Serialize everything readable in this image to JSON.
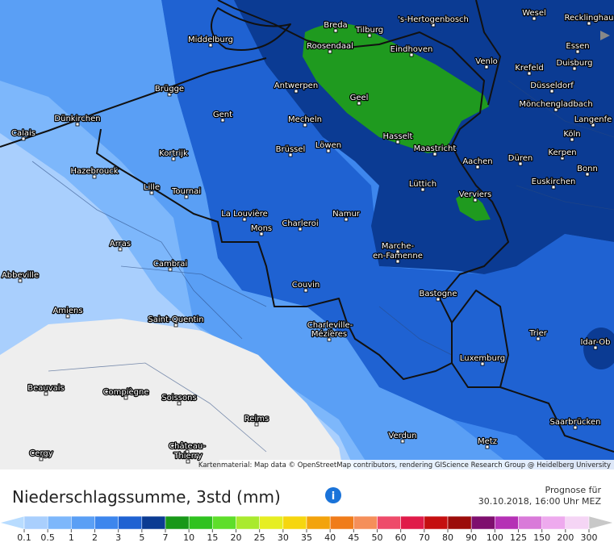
{
  "map": {
    "cities": [
      "Middelburg",
      "Breda",
      "Tilburg",
      "'s-Hertogenbosch",
      "Wesel",
      "Recklinghau",
      "Roosendaal",
      "Eindhoven",
      "Venlo",
      "Krefeld",
      "Essen",
      "Duisburg",
      "Brügge",
      "Antwerpen",
      "Düsseldorf",
      "Gent",
      "Geel",
      "Mönchengladbach",
      "Langenfe",
      "Dünkirchen",
      "Calais",
      "Mecheln",
      "Hasselt",
      "Köln",
      "Kortrijk",
      "Brüssel",
      "Löwen",
      "Maastricht",
      "Kerpen",
      "Düren",
      "Aachen",
      "Bonn",
      "Hazebrouck",
      "Euskirchen",
      "Lüttich",
      "Lille",
      "Tournai",
      "Verviers",
      "La Louvière",
      "Namur",
      "Charleroi",
      "Mons",
      "Arras",
      "Marche-",
      "en-Famenne",
      "Cambrai",
      "Abbeville",
      "Couvin",
      "Bastogne",
      "Amiens",
      "Saint-Quentin",
      "Charleville-",
      "Mézières",
      "Trier",
      "Idar-Ob",
      "Luxemburg",
      "Beauvais",
      "Compiègne",
      "Soissons",
      "Reims",
      "Saarbrücken",
      "Verdun",
      "Metz",
      "Château-",
      "Thierry",
      "Cergy"
    ],
    "attribution": "Kartenmaterial: Map data © OpenStreetMap contributors, rendering GIScience Research Group @ Heidelberg University"
  },
  "header": {
    "title": "Niederschlagssumme, 3std (mm)",
    "forecast_label": "Prognose für",
    "forecast_time": "30.10.2018, 16:00 Uhr MEZ"
  },
  "legend": {
    "labels": [
      "0.1",
      "0.5",
      "1",
      "2",
      "3",
      "5",
      "7",
      "10",
      "15",
      "20",
      "25",
      "30",
      "35",
      "40",
      "45",
      "50",
      "60",
      "70",
      "80",
      "90",
      "100",
      "125",
      "150",
      "200",
      "300"
    ],
    "colors": [
      "#b8dcff",
      "#a9cffd",
      "#7db7fb",
      "#5a9ff5",
      "#3d86ed",
      "#1f62d2",
      "#0b3b93",
      "#189818",
      "#2fc21f",
      "#5ede2a",
      "#a9ea2e",
      "#e6ee22",
      "#f6d60f",
      "#f3a30c",
      "#f07c1a",
      "#f58f5a",
      "#ee4b6a",
      "#e01b49",
      "#c50f10",
      "#9c0c0a",
      "#7e0f6e",
      "#b531b5",
      "#d97ad9",
      "#eeaaee",
      "#f5d5f5",
      "#c8c8c8"
    ]
  }
}
